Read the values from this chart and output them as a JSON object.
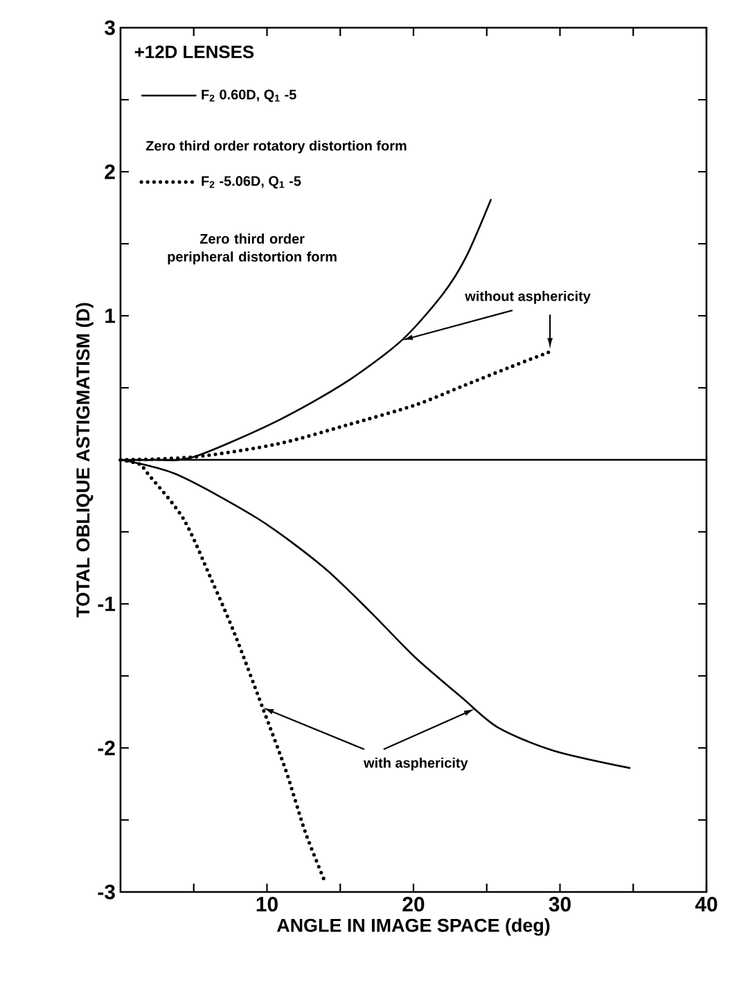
{
  "chart_data": {
    "type": "line",
    "title": "+12D LENSES",
    "xlabel": "ANGLE IN IMAGE SPACE (deg)",
    "ylabel": "TOTAL OBLIQUE ASTIGMATISM (D)",
    "series": [
      {
        "name": "F$_{2}$ 0.60D, Q$_{1}$ -5",
        "color": "#000000",
        "line_style": "solid",
        "x": [
          0,
          2.2,
          5.0,
          10.7,
          15.4,
          19.2,
          22.0,
          23.6,
          25.3
        ],
        "values": [
          0,
          0,
          0.02,
          0.27,
          0.54,
          0.83,
          1.15,
          1.41,
          1.81
        ]
      },
      {
        "name": "F$_{2}$ -5.06D, Q$_{1}$ -5",
        "color": "#000000",
        "line_style": "dotted",
        "x": [
          0,
          5.0,
          10.7,
          15.4,
          20.1,
          23.3,
          26.5,
          29.3
        ],
        "values": [
          0,
          0.02,
          0.11,
          0.24,
          0.38,
          0.51,
          0.64,
          0.75
        ]
      },
      {
        "color": "#000000",
        "line_style": "solid",
        "x": [
          0,
          3.8,
          9.4,
          13.8,
          17.0,
          20.1,
          23.3,
          25.8,
          29.6,
          34.8
        ],
        "values": [
          0,
          -0.1,
          -0.41,
          -0.74,
          -1.05,
          -1.37,
          -1.65,
          -1.86,
          -2.02,
          -2.14
        ]
      },
      {
        "color": "#000000",
        "line_style": "dotted",
        "x": [
          0,
          1.3,
          1.9,
          4.3,
          6.2,
          7.8,
          9.7,
          11.3,
          12.6,
          14.0
        ],
        "values": [
          0,
          -0.03,
          -0.1,
          -0.41,
          -0.83,
          -1.21,
          -1.72,
          -2.16,
          -2.58,
          -2.94
        ]
      }
    ],
    "xlim": [
      0,
      40
    ],
    "ylim": [
      -3,
      3
    ],
    "xticks": [
      {
        "value": 5,
        "label": null
      },
      10,
      {
        "value": 15,
        "label": null
      },
      20,
      {
        "value": 25,
        "label": null
      },
      30,
      {
        "value": 35,
        "label": null
      },
      40
    ],
    "yticks": [
      -3,
      {
        "value": -2.5,
        "label": null
      },
      -2,
      {
        "value": -1.5,
        "label": null
      },
      -1,
      {
        "value": -0.5,
        "label": null
      },
      {
        "value": 0,
        "label": null
      },
      {
        "value": 0.5,
        "label": null
      },
      1,
      {
        "value": 1.5,
        "label": null
      },
      2,
      {
        "value": 2.5,
        "label": null
      },
      3
    ],
    "ref_lines": [
      {
        "axis": "y",
        "value": 0
      }
    ],
    "legend": "top left",
    "annotations": [
      "Zero third order rotatory distortion form",
      "Zero third order peripheral distortion form",
      {
        "text": "without asphericity",
        "x": 19.2,
        "y": 0.83
      },
      {
        "text": "with asphericity",
        "x": 9.7,
        "y": -1.72
      }
    ]
  }
}
